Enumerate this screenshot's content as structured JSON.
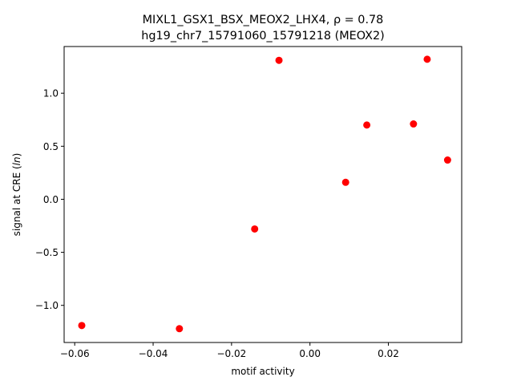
{
  "chart_data": {
    "type": "scatter",
    "title_line1": "MIXL1_GSX1_BSX_MEOX2_LHX4, ρ = 0.78",
    "title_line2": "hg19_chr7_15791060_15791218 (MEOX2)",
    "xlabel": "motif activity",
    "ylabel": "signal at CRE (ln)",
    "xlim": [
      -0.0627,
      0.0387
    ],
    "ylim": [
      -1.35,
      1.44
    ],
    "x_ticks": [
      {
        "value": -0.06,
        "label": "−0.06"
      },
      {
        "value": -0.04,
        "label": "−0.04"
      },
      {
        "value": -0.02,
        "label": "−0.02"
      },
      {
        "value": 0.0,
        "label": "0.00"
      },
      {
        "value": 0.02,
        "label": "0.02"
      }
    ],
    "y_ticks": [
      {
        "value": -1.0,
        "label": "−1.0"
      },
      {
        "value": -0.5,
        "label": "−0.5"
      },
      {
        "value": 0.0,
        "label": "0.0"
      },
      {
        "value": 0.5,
        "label": "0.5"
      },
      {
        "value": 1.0,
        "label": "1.0"
      }
    ],
    "grid": false,
    "marker_color": "#ff0000",
    "points": [
      {
        "x": -0.0582,
        "y": -1.19
      },
      {
        "x": -0.0333,
        "y": -1.22
      },
      {
        "x": -0.0141,
        "y": -0.28
      },
      {
        "x": -0.0079,
        "y": 1.31
      },
      {
        "x": 0.0091,
        "y": 0.16
      },
      {
        "x": 0.0145,
        "y": 0.7
      },
      {
        "x": 0.0264,
        "y": 0.71
      },
      {
        "x": 0.0299,
        "y": 1.32
      },
      {
        "x": 0.0351,
        "y": 0.37
      }
    ]
  }
}
